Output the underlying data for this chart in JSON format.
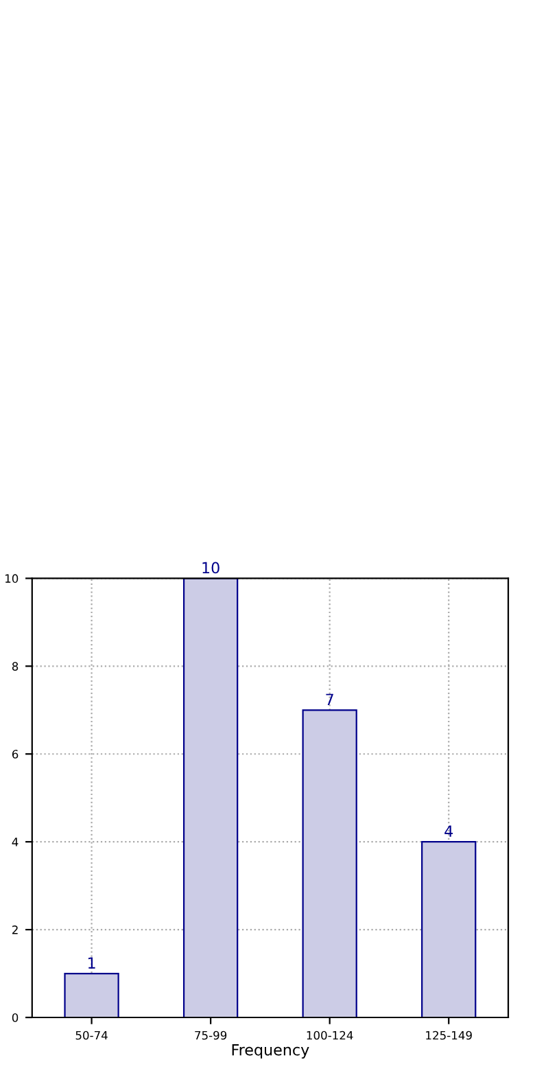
{
  "chart_data": {
    "type": "bar",
    "xlabel": "Frequency",
    "categories": [
      "50-74",
      "75-99",
      "100-124",
      "125-149"
    ],
    "values": [
      1,
      10,
      7,
      4
    ],
    "color": "#cccce6",
    "ylim": [
      0,
      10
    ],
    "yticks": [
      0,
      2,
      4,
      6,
      8,
      10
    ],
    "grid": true,
    "data_labels": true
  }
}
